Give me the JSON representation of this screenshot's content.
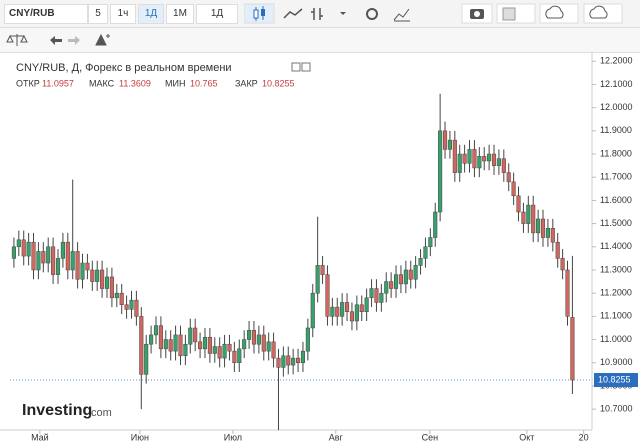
{
  "toolbar": {
    "symbol": "CNY/RUB",
    "intervals": [
      "5",
      "1ч",
      "1Д",
      "1М",
      "1Д"
    ]
  },
  "legend": {
    "title": "CNY/RUB, Д, Форекс в реальном времени",
    "open_label": "ОТКР",
    "high_label": "МАКС",
    "low_label": "МИН",
    "close_label": "ЗАКР"
  },
  "logo": {
    "name": "Investing",
    "suffix": ".com"
  },
  "chart_data": {
    "type": "candlestick",
    "up_color": "#3aa06b",
    "down_color": "#d0665e",
    "grid": false,
    "ylim": [
      10.61,
      12.24
    ],
    "yticks": [
      {
        "value": 10.7,
        "label": "10.7000"
      },
      {
        "value": 10.8,
        "label": "10.8000"
      },
      {
        "value": 10.9,
        "label": "10.9000"
      },
      {
        "value": 11.0,
        "label": "11.0000"
      },
      {
        "value": 11.1,
        "label": "11.1000"
      },
      {
        "value": 11.2,
        "label": "11.2000"
      },
      {
        "value": 11.3,
        "label": "11.3000"
      },
      {
        "value": 11.4,
        "label": "11.4000"
      },
      {
        "value": 11.5,
        "label": "11.5000"
      },
      {
        "value": 11.6,
        "label": "11.6000"
      },
      {
        "value": 11.7,
        "label": "11.7000"
      },
      {
        "value": 11.8,
        "label": "11.8000"
      },
      {
        "value": 11.9,
        "label": "11.9000"
      },
      {
        "value": 12.0,
        "label": "12.0000"
      },
      {
        "value": 12.1,
        "label": "12.1000"
      },
      {
        "value": 12.2,
        "label": "12.2000"
      }
    ],
    "xlim": [
      -0.8,
      118
    ],
    "xticks": [
      {
        "value": 5.3,
        "label": "Май"
      },
      {
        "value": 25.7,
        "label": "Июн"
      },
      {
        "value": 44.7,
        "label": "Июл"
      },
      {
        "value": 65.7,
        "label": "Авг"
      },
      {
        "value": 84.9,
        "label": "Сен"
      },
      {
        "value": 104.7,
        "label": "Окт"
      },
      {
        "value": 116.3,
        "label": "20"
      }
    ],
    "open": [
      11.35,
      11.4,
      11.43,
      11.36,
      11.42,
      11.3,
      11.38,
      11.33,
      11.4,
      11.28,
      11.35,
      11.42,
      11.3,
      11.38,
      11.26,
      11.33,
      11.3,
      11.25,
      11.3,
      11.22,
      11.27,
      11.18,
      11.2,
      11.15,
      11.13,
      11.17,
      11.1,
      10.85,
      10.98,
      11.02,
      11.06,
      10.96,
      11.0,
      10.95,
      11.02,
      10.93,
      10.98,
      11.05,
      10.99,
      10.96,
      11.01,
      10.94,
      10.97,
      10.92,
      10.98,
      10.95,
      10.9,
      10.96,
      11.0,
      11.04,
      10.98,
      11.02,
      10.95,
      10.99,
      10.92,
      10.88,
      10.93,
      10.89,
      10.92,
      10.9,
      10.95,
      11.05,
      11.2,
      11.32,
      11.28,
      11.1,
      11.14,
      11.1,
      11.16,
      11.12,
      11.08,
      11.15,
      11.12,
      11.18,
      11.22,
      11.16,
      11.2,
      11.25,
      11.22,
      11.28,
      11.24,
      11.3,
      11.26,
      11.32,
      11.35,
      11.4,
      11.44,
      11.55,
      11.9,
      11.82,
      11.86,
      11.72,
      11.8,
      11.76,
      11.82,
      11.74,
      11.79,
      11.77,
      11.8,
      11.75,
      11.78,
      11.72,
      11.68,
      11.62,
      11.55,
      11.5,
      11.58,
      11.46,
      11.52,
      11.44,
      11.48,
      11.42,
      11.35,
      11.3,
      11.0957
    ],
    "high": [
      11.44,
      11.47,
      11.47,
      11.46,
      11.46,
      11.42,
      11.42,
      11.44,
      11.44,
      11.39,
      11.46,
      11.46,
      11.69,
      11.42,
      11.37,
      11.37,
      11.34,
      11.34,
      11.34,
      11.31,
      11.31,
      11.24,
      11.24,
      11.19,
      11.21,
      11.21,
      11.14,
      11.02,
      11.06,
      11.1,
      11.1,
      11.04,
      11.04,
      11.06,
      11.06,
      11.02,
      11.09,
      11.09,
      11.03,
      11.05,
      11.05,
      11.01,
      11.01,
      11.02,
      11.02,
      10.99,
      11.0,
      11.04,
      11.08,
      11.08,
      11.06,
      11.06,
      11.03,
      11.03,
      10.96,
      10.97,
      10.97,
      10.96,
      10.96,
      10.99,
      11.09,
      11.24,
      11.53,
      11.36,
      11.32,
      11.18,
      11.18,
      11.2,
      11.2,
      11.16,
      11.19,
      11.19,
      11.22,
      11.26,
      11.26,
      11.24,
      11.29,
      11.29,
      11.32,
      11.32,
      11.34,
      11.34,
      11.36,
      11.39,
      11.44,
      11.48,
      11.59,
      12.06,
      11.94,
      11.9,
      11.9,
      11.84,
      11.84,
      11.86,
      11.86,
      11.83,
      11.83,
      11.84,
      11.84,
      11.82,
      11.82,
      11.76,
      11.72,
      11.66,
      11.59,
      11.62,
      11.62,
      11.56,
      11.56,
      11.52,
      11.52,
      11.46,
      11.39,
      11.34,
      11.3609
    ],
    "low": [
      11.31,
      11.36,
      11.32,
      11.32,
      11.26,
      11.26,
      11.29,
      11.29,
      11.24,
      11.24,
      11.31,
      11.26,
      11.26,
      11.22,
      11.22,
      11.26,
      11.21,
      11.21,
      11.18,
      11.18,
      11.14,
      11.14,
      11.11,
      11.09,
      11.09,
      11.06,
      10.7,
      10.81,
      10.94,
      10.98,
      10.92,
      10.92,
      10.91,
      10.91,
      10.89,
      10.89,
      10.94,
      10.95,
      10.92,
      10.92,
      10.9,
      10.9,
      10.88,
      10.88,
      10.91,
      10.86,
      10.86,
      10.92,
      10.96,
      10.94,
      10.94,
      10.91,
      10.91,
      10.88,
      10.61,
      10.84,
      10.85,
      10.85,
      10.86,
      10.86,
      10.91,
      11.01,
      11.16,
      11.24,
      11.06,
      11.06,
      11.06,
      11.06,
      11.08,
      11.04,
      11.04,
      11.08,
      11.08,
      11.14,
      11.12,
      11.12,
      11.16,
      11.18,
      11.18,
      11.2,
      11.2,
      11.22,
      11.22,
      11.28,
      11.31,
      11.36,
      11.4,
      11.51,
      11.78,
      11.78,
      11.68,
      11.68,
      11.72,
      11.72,
      11.7,
      11.7,
      11.73,
      11.73,
      11.71,
      11.71,
      11.68,
      11.64,
      11.58,
      11.51,
      11.46,
      11.46,
      11.42,
      11.42,
      11.4,
      11.4,
      11.38,
      11.31,
      11.26,
      11.06,
      10.765
    ],
    "close": [
      11.4,
      11.43,
      11.36,
      11.42,
      11.3,
      11.38,
      11.33,
      11.4,
      11.28,
      11.35,
      11.42,
      11.3,
      11.38,
      11.26,
      11.33,
      11.3,
      11.25,
      11.3,
      11.22,
      11.27,
      11.18,
      11.2,
      11.15,
      11.13,
      11.17,
      11.1,
      10.85,
      10.98,
      11.02,
      11.06,
      10.96,
      11.0,
      10.95,
      11.02,
      10.93,
      10.98,
      11.05,
      10.99,
      10.96,
      11.01,
      10.94,
      10.97,
      10.92,
      10.98,
      10.95,
      10.9,
      10.96,
      11.0,
      11.04,
      10.98,
      11.02,
      10.95,
      10.99,
      10.92,
      10.88,
      10.93,
      10.89,
      10.92,
      10.9,
      10.95,
      11.05,
      11.2,
      11.32,
      11.28,
      11.1,
      11.14,
      11.1,
      11.16,
      11.12,
      11.08,
      11.15,
      11.12,
      11.18,
      11.22,
      11.16,
      11.2,
      11.25,
      11.22,
      11.28,
      11.24,
      11.3,
      11.26,
      11.32,
      11.35,
      11.4,
      11.44,
      11.55,
      11.9,
      11.82,
      11.86,
      11.72,
      11.8,
      11.76,
      11.82,
      11.74,
      11.79,
      11.77,
      11.8,
      11.75,
      11.78,
      11.72,
      11.68,
      11.62,
      11.55,
      11.5,
      11.58,
      11.46,
      11.52,
      11.44,
      11.48,
      11.42,
      11.35,
      11.3,
      11.1,
      10.8255
    ]
  }
}
